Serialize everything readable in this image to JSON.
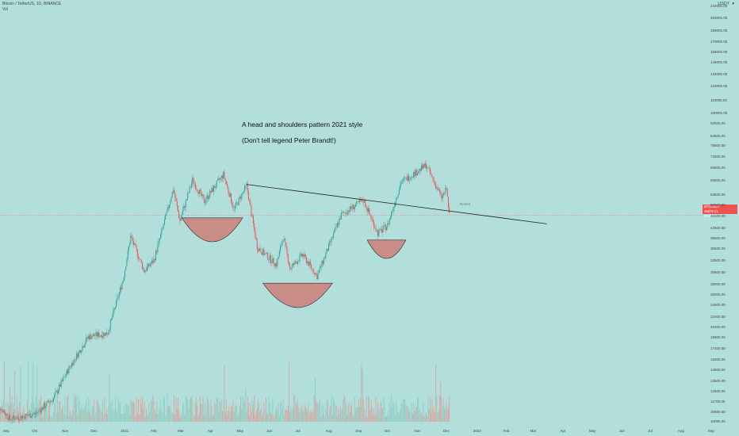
{
  "header": {
    "symbol": "Bitcoin / TetherUS, 1D, BINANCE",
    "vol_label": "Vol",
    "currency_label": "USDT",
    "currency_icon": "chevron-down-icon"
  },
  "annotations": {
    "title": "A head and shoulders pattern 2021 style",
    "subtitle": "(Don't tell legend Peter Brandt!)",
    "retest": "Retest"
  },
  "price_tag": {
    "ticker": "BTCUSDT",
    "value": "46878.01",
    "countdown": "22:47:06"
  },
  "colors": {
    "background": "#b2dfdb",
    "up": "#26a69a",
    "down": "#ef5350",
    "neckline": "#222222",
    "shoulder_fill": "#c98c86"
  },
  "chart_data": {
    "type": "candlestick",
    "yscale": "log",
    "ylim": [
      10090,
      222000
    ],
    "y_ticks": [
      "222000.00",
      "203000.00",
      "185000.00",
      "170000.00",
      "158000.00",
      "146000.00",
      "134000.00",
      "122000.00",
      "110000.00",
      "100000.00",
      "92500.00",
      "84500.00",
      "78500.00",
      "72500.00",
      "66500.00",
      "60500.00",
      "54500.00",
      "50500.00",
      "46500.00",
      "42500.00",
      "39500.00",
      "36500.00",
      "33500.00",
      "30500.00",
      "28000.00",
      "26000.00",
      "24000.00",
      "22000.00",
      "20400.00",
      "18900.00",
      "17400.00",
      "16000.00",
      "14800.00",
      "13600.00",
      "12600.00",
      "11700.00",
      "10850.00",
      "10090.00"
    ],
    "x_ticks": [
      "Sep",
      "Oct",
      "Nov",
      "Dec",
      "2021",
      "Feb",
      "Mar",
      "Apr",
      "May",
      "Jun",
      "Jul",
      "Aug",
      "Sep",
      "Oct",
      "Nov",
      "Dec",
      "2022",
      "Feb",
      "Mar",
      "Apr",
      "May",
      "Jun",
      "Jul",
      "Aug",
      "Sep"
    ],
    "price_path": [
      [
        "2020-08-20",
        11800
      ],
      [
        "2020-09-05",
        10300
      ],
      [
        "2020-10-01",
        10700
      ],
      [
        "2020-10-20",
        12000
      ],
      [
        "2020-11-05",
        15000
      ],
      [
        "2020-11-25",
        19000
      ],
      [
        "2020-12-15",
        19500
      ],
      [
        "2020-12-31",
        29000
      ],
      [
        "2021-01-08",
        40000
      ],
      [
        "2021-01-22",
        31000
      ],
      [
        "2021-02-01",
        33500
      ],
      [
        "2021-02-21",
        57000
      ],
      [
        "2021-02-28",
        45000
      ],
      [
        "2021-03-13",
        61000
      ],
      [
        "2021-03-25",
        52000
      ],
      [
        "2021-04-14",
        63500
      ],
      [
        "2021-04-25",
        49000
      ],
      [
        "2021-05-08",
        58500
      ],
      [
        "2021-05-12",
        49500
      ],
      [
        "2021-05-19",
        37000
      ],
      [
        "2021-06-08",
        32500
      ],
      [
        "2021-06-15",
        40000
      ],
      [
        "2021-06-22",
        31500
      ],
      [
        "2021-07-05",
        35000
      ],
      [
        "2021-07-20",
        29800
      ],
      [
        "2021-08-14",
        47000
      ],
      [
        "2021-09-06",
        52500
      ],
      [
        "2021-09-21",
        41000
      ],
      [
        "2021-10-01",
        43500
      ],
      [
        "2021-10-15",
        60000
      ],
      [
        "2021-11-10",
        68000
      ],
      [
        "2021-11-26",
        53500
      ],
      [
        "2021-12-01",
        57000
      ],
      [
        "2021-12-04",
        46878
      ]
    ],
    "neckline": {
      "from": [
        "2021-05-08",
        59000
      ],
      "to": [
        "2022-03-15",
        44000
      ]
    },
    "shoulder_shapes": [
      {
        "name": "left-shoulder",
        "start": "2021-03-02",
        "end": "2021-05-04",
        "top": 46000,
        "bottom": 38500
      },
      {
        "name": "head",
        "start": "2021-05-25",
        "end": "2021-08-05",
        "top": 28300,
        "bottom": 23600
      },
      {
        "name": "right-shoulder",
        "start": "2021-09-10",
        "end": "2021-10-20",
        "top": 39000,
        "bottom": 34000
      }
    ]
  }
}
